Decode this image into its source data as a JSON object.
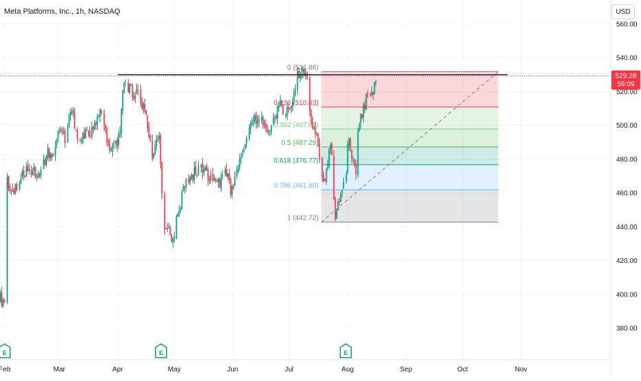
{
  "header": {
    "title": "Meta Platforms, Inc., 1h, NASDAQ",
    "currency": "USD"
  },
  "price_tag": {
    "price": "529.28",
    "countdown": "59:09",
    "color": "#f23645"
  },
  "earnings_marker_label": "E",
  "colors": {
    "up": "#089981",
    "down": "#f23645",
    "grid": "#f0f3fa",
    "axis_text": "#131722",
    "horizontal_line": "#131722",
    "trend_line": "#787b86"
  },
  "chart_data": {
    "type": "candlestick",
    "title": "Meta Platforms, Inc., 1h, NASDAQ",
    "ylim": [
      363,
      568
    ],
    "y_ticks": [
      "560.00",
      "540.00",
      "520.00",
      "500.00",
      "480.00",
      "460.00",
      "440.00",
      "420.00",
      "400.00",
      "380.00"
    ],
    "y_tick_values": [
      560,
      540,
      520,
      500,
      480,
      460,
      440,
      420,
      400,
      380
    ],
    "x_ticks": [
      "Feb",
      "Mar",
      "Apr",
      "May",
      "Jun",
      "Jul",
      "Aug",
      "Sep",
      "Oct",
      "Nov"
    ],
    "x_tick_dates": [
      "2024-02-01",
      "2024-03-01",
      "2024-04-01",
      "2024-05-01",
      "2024-06-01",
      "2024-07-01",
      "2024-08-01",
      "2024-09-01",
      "2024-10-01",
      "2024-11-01"
    ],
    "price_path": [
      [
        "2024-01-26",
        393
      ],
      [
        "2024-01-29",
        399
      ],
      [
        "2024-02-01",
        394
      ],
      [
        "2024-02-02",
        468
      ],
      [
        "2024-02-05",
        459
      ],
      [
        "2024-02-09",
        470
      ],
      [
        "2024-02-14",
        475
      ],
      [
        "2024-02-20",
        470
      ],
      [
        "2024-02-23",
        484
      ],
      [
        "2024-02-26",
        483
      ],
      [
        "2024-03-01",
        498
      ],
      [
        "2024-03-04",
        493
      ],
      [
        "2024-03-07",
        510
      ],
      [
        "2024-03-11",
        490
      ],
      [
        "2024-03-15",
        495
      ],
      [
        "2024-03-19",
        497
      ],
      [
        "2024-03-22",
        510
      ],
      [
        "2024-03-28",
        485
      ],
      [
        "2024-04-02",
        492
      ],
      [
        "2024-04-04",
        525
      ],
      [
        "2024-04-08",
        520
      ],
      [
        "2024-04-12",
        518
      ],
      [
        "2024-04-16",
        505
      ],
      [
        "2024-04-19",
        482
      ],
      [
        "2024-04-23",
        495
      ],
      [
        "2024-04-25",
        442
      ],
      [
        "2024-04-30",
        433
      ],
      [
        "2024-05-03",
        448
      ],
      [
        "2024-05-07",
        468
      ],
      [
        "2024-05-10",
        470
      ],
      [
        "2024-05-14",
        475
      ],
      [
        "2024-05-17",
        472
      ],
      [
        "2024-05-21",
        468
      ],
      [
        "2024-05-24",
        465
      ],
      [
        "2024-05-29",
        474
      ],
      [
        "2024-05-31",
        460
      ],
      [
        "2024-06-04",
        478
      ],
      [
        "2024-06-07",
        488
      ],
      [
        "2024-06-12",
        505
      ],
      [
        "2024-06-14",
        504
      ],
      [
        "2024-06-18",
        500
      ],
      [
        "2024-06-21",
        498
      ],
      [
        "2024-06-26",
        512
      ],
      [
        "2024-06-28",
        507
      ],
      [
        "2024-07-02",
        509
      ],
      [
        "2024-07-05",
        530
      ],
      [
        "2024-07-08",
        533
      ],
      [
        "2024-07-10",
        532
      ],
      [
        "2024-07-12",
        505
      ],
      [
        "2024-07-15",
        496
      ],
      [
        "2024-07-17",
        482
      ],
      [
        "2024-07-19",
        466
      ],
      [
        "2024-07-23",
        490
      ],
      [
        "2024-07-25",
        445
      ],
      [
        "2024-07-29",
        465
      ],
      [
        "2024-07-31",
        468
      ],
      [
        "2024-08-01",
        500
      ],
      [
        "2024-08-02",
        490
      ],
      [
        "2024-08-05",
        470
      ],
      [
        "2024-08-06",
        492
      ],
      [
        "2024-08-08",
        505
      ],
      [
        "2024-08-12",
        520
      ],
      [
        "2024-08-14",
        517
      ],
      [
        "2024-08-16",
        529
      ]
    ],
    "horizontal_line": {
      "price": 530.0,
      "from": "2024-04-01",
      "to": "2024-10-25"
    },
    "current_price_line": 529.28,
    "fibonacci": {
      "from": "2024-07-18",
      "to": "2024-10-20",
      "levels": [
        {
          "label": "0 (531.86)",
          "ratio": 0,
          "price": 531.86,
          "line_color": "#787b86",
          "text_color": "#787b86",
          "fill": "rgba(242,54,69,0.2)"
        },
        {
          "label": "0.236 (510.83)",
          "ratio": 0.236,
          "price": 510.83,
          "line_color": "#f23645",
          "text_color": "#f23645",
          "fill": "rgba(129,199,132,0.2)"
        },
        {
          "label": "0.382 (497.81)",
          "ratio": 0.382,
          "price": 497.81,
          "line_color": "#81c784",
          "text_color": "#81c784",
          "fill": "rgba(76,175,80,0.2)"
        },
        {
          "label": "0.5 (487.29)",
          "ratio": 0.5,
          "price": 487.29,
          "line_color": "#4caf50",
          "text_color": "#4caf50",
          "fill": "rgba(8,153,129,0.2)"
        },
        {
          "label": "0.618 (476.77)",
          "ratio": 0.618,
          "price": 476.77,
          "line_color": "#089981",
          "text_color": "#089981",
          "fill": "rgba(100,181,246,0.2)"
        },
        {
          "label": "0.786 (461.80)",
          "ratio": 0.786,
          "price": 461.8,
          "line_color": "#64b5f6",
          "text_color": "#64b5f6",
          "fill": "rgba(149,152,161,0.25)"
        },
        {
          "label": "1 (442.72)",
          "ratio": 1,
          "price": 442.72,
          "line_color": "#787b86",
          "text_color": "#787b86",
          "fill": null
        }
      ]
    },
    "trend_line": {
      "from": [
        "2024-07-18",
        442.72
      ],
      "to": [
        "2024-10-20",
        531.86
      ]
    },
    "earnings_events": [
      "2024-02-01",
      "2024-04-24",
      "2024-07-31"
    ],
    "grid": true,
    "legend": "none"
  }
}
